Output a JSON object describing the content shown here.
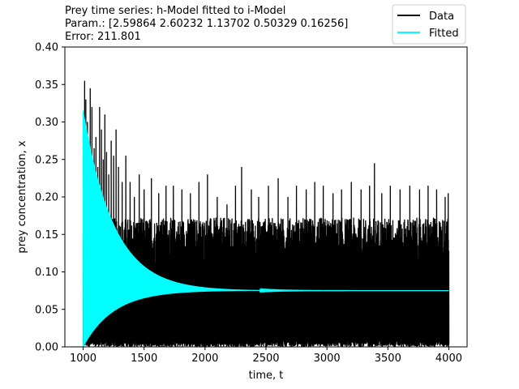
{
  "chart_data": {
    "type": "line",
    "title": "Prey time series: h-Model fitted to i-Model",
    "subtitle_lines": [
      "Param.: [2.59864 2.60232 1.13702 0.50329 0.16256]",
      "Error: 211.801"
    ],
    "xlabel": "time, t",
    "ylabel": "prey concentration, x",
    "xlim": [
      850,
      4150
    ],
    "ylim": [
      0.0,
      0.4
    ],
    "x_ticks": [
      1000,
      1500,
      2000,
      2500,
      3000,
      3500,
      4000
    ],
    "x_tick_labels": [
      "1000",
      "1500",
      "2000",
      "2500",
      "3000",
      "3500",
      "4000"
    ],
    "y_ticks": [
      0.0,
      0.05,
      0.1,
      0.15,
      0.2,
      0.25,
      0.3,
      0.35,
      0.4
    ],
    "y_tick_labels": [
      "0.00",
      "0.05",
      "0.10",
      "0.15",
      "0.20",
      "0.25",
      "0.30",
      "0.35",
      "0.40"
    ],
    "grid": false,
    "legend_position": "top-right",
    "series": [
      {
        "name": "Data",
        "color": "#000000",
        "kind": "noisy-oscillation",
        "x_range": [
          1000,
          4000
        ],
        "baseline_min": 0.0,
        "typical_peak": 0.15,
        "spikes": [
          [
            1002,
            0.165
          ],
          [
            1012,
            0.355
          ],
          [
            1022,
            0.33
          ],
          [
            1035,
            0.3
          ],
          [
            1048,
            0.255
          ],
          [
            1058,
            0.345
          ],
          [
            1072,
            0.32
          ],
          [
            1090,
            0.265
          ],
          [
            1105,
            0.28
          ],
          [
            1120,
            0.24
          ],
          [
            1135,
            0.32
          ],
          [
            1150,
            0.29
          ],
          [
            1165,
            0.25
          ],
          [
            1178,
            0.31
          ],
          [
            1192,
            0.26
          ],
          [
            1210,
            0.23
          ],
          [
            1230,
            0.275
          ],
          [
            1250,
            0.255
          ],
          [
            1270,
            0.29
          ],
          [
            1290,
            0.24
          ],
          [
            1320,
            0.22
          ],
          [
            1350,
            0.255
          ],
          [
            1385,
            0.22
          ],
          [
            1420,
            0.2
          ],
          [
            1460,
            0.23
          ],
          [
            1500,
            0.21
          ],
          [
            1560,
            0.225
          ],
          [
            1620,
            0.205
          ],
          [
            1680,
            0.215
          ],
          [
            1740,
            0.215
          ],
          [
            1810,
            0.21
          ],
          [
            1880,
            0.205
          ],
          [
            1950,
            0.22
          ],
          [
            2020,
            0.23
          ],
          [
            2100,
            0.2
          ],
          [
            2180,
            0.19
          ],
          [
            2250,
            0.215
          ],
          [
            2300,
            0.24
          ],
          [
            2380,
            0.21
          ],
          [
            2440,
            0.2
          ],
          [
            2520,
            0.215
          ],
          [
            2600,
            0.225
          ],
          [
            2680,
            0.2
          ],
          [
            2750,
            0.215
          ],
          [
            2830,
            0.21
          ],
          [
            2900,
            0.22
          ],
          [
            2970,
            0.215
          ],
          [
            3050,
            0.205
          ],
          [
            3120,
            0.21
          ],
          [
            3200,
            0.22
          ],
          [
            3280,
            0.21
          ],
          [
            3350,
            0.215
          ],
          [
            3390,
            0.245
          ],
          [
            3450,
            0.205
          ],
          [
            3520,
            0.215
          ],
          [
            3600,
            0.21
          ],
          [
            3680,
            0.215
          ],
          [
            3760,
            0.21
          ],
          [
            3830,
            0.215
          ],
          [
            3900,
            0.21
          ],
          [
            3970,
            0.2
          ],
          [
            3995,
            0.205
          ]
        ]
      },
      {
        "name": "Fitted",
        "color": "#00ffff",
        "kind": "damped-oscillation",
        "x_range": [
          1000,
          4000
        ],
        "equilibrium": 0.075,
        "initial_peak": 0.315,
        "initial_trough": 0.0,
        "decay_time": 250
      }
    ]
  }
}
